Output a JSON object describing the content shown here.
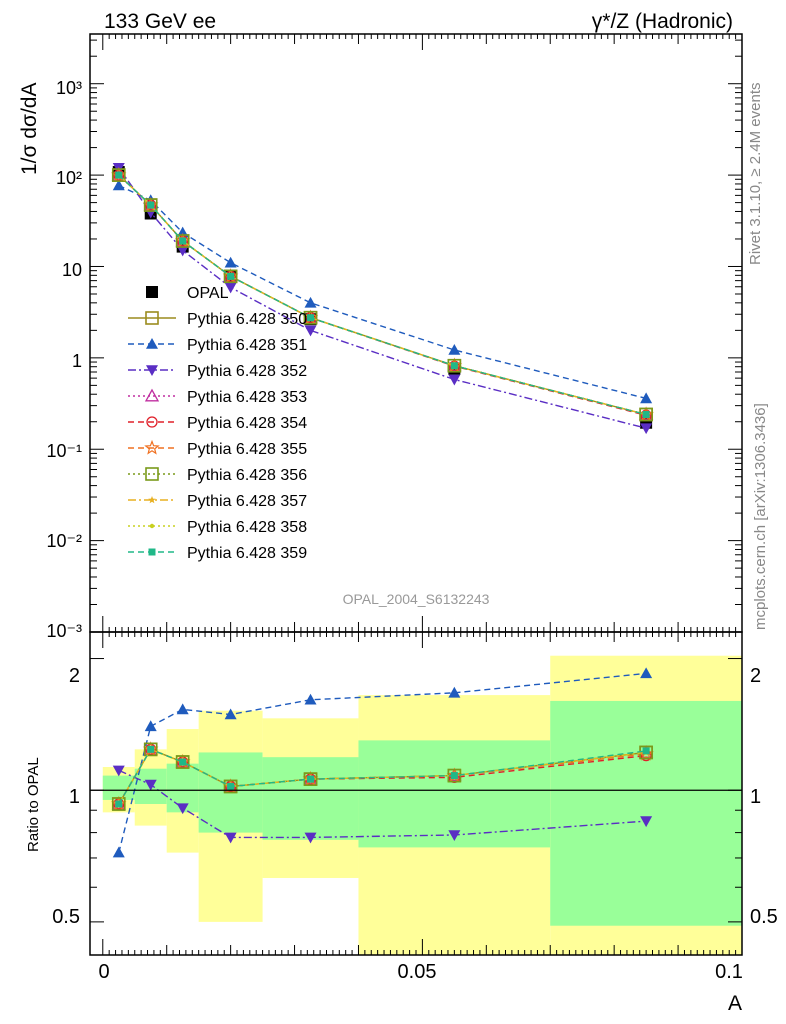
{
  "header": {
    "left": "133 GeV ee",
    "right": "γ*/Z (Hadronic)"
  },
  "side_labels": {
    "rivet": "Rivet 3.1.10, ≥ 2.4M events",
    "mcplots": "mcplots.cern.ch [arXiv:1306.3436]"
  },
  "watermark": "OPAL_2004_S6132243",
  "axes": {
    "main_ylabel": "1/σ dσ/dA",
    "ratio_ylabel": "Ratio to OPAL",
    "xlabel": "A",
    "x_ticks": [
      "0",
      "0.05",
      "0.1"
    ],
    "main_y_ticks": [
      "10⁻³",
      "10⁻²",
      "10⁻¹",
      "1",
      "10",
      "10²",
      "10³"
    ],
    "ratio_y_ticks": [
      "0.5",
      "1",
      "2"
    ]
  },
  "chart_data": [
    {
      "type": "line",
      "panel": "main",
      "xlim": [
        -0.002,
        0.1
      ],
      "ylim": [
        0.001,
        3500
      ],
      "y_scale": "log",
      "x": [
        0.0025,
        0.0075,
        0.0125,
        0.02,
        0.0325,
        0.055,
        0.085
      ],
      "legend_position": "center-left",
      "series": [
        {
          "name": "OPAL",
          "color": "#000000",
          "marker": "square-filled",
          "line": "none",
          "values": [
            108,
            38,
            16.5,
            7.7,
            2.65,
            0.76,
            0.195
          ]
        },
        {
          "name": "Pythia 6.428 350",
          "color": "#9b8c1e",
          "marker": "square-open",
          "line": "solid",
          "values": [
            100,
            47,
            19,
            7.8,
            2.75,
            0.82,
            0.24
          ]
        },
        {
          "name": "Pythia 6.428 351",
          "color": "#1f5bbd",
          "marker": "triangle-up",
          "line": "dashed",
          "values": [
            77,
            53,
            23.5,
            11,
            4.0,
            1.22,
            0.36
          ]
        },
        {
          "name": "Pythia 6.428 352",
          "color": "#5a2ec4",
          "marker": "triangle-down",
          "line": "dashdot",
          "values": [
            120,
            39,
            15,
            5.9,
            2.0,
            0.58,
            0.17
          ]
        },
        {
          "name": "Pythia 6.428 353",
          "color": "#c02fa0",
          "marker": "triangle-open",
          "line": "dotted",
          "values": [
            100,
            47,
            19,
            7.8,
            2.75,
            0.82,
            0.24
          ]
        },
        {
          "name": "Pythia 6.428 354",
          "color": "#e0202a",
          "marker": "circle-open",
          "line": "dashed",
          "values": [
            100,
            47,
            19,
            7.8,
            2.75,
            0.81,
            0.235
          ]
        },
        {
          "name": "Pythia 6.428 355",
          "color": "#f07020",
          "marker": "star-open",
          "line": "dashed",
          "values": [
            100,
            47,
            19,
            7.8,
            2.75,
            0.82,
            0.24
          ]
        },
        {
          "name": "Pythia 6.428 356",
          "color": "#7a9a1a",
          "marker": "square-open",
          "line": "dotted",
          "values": [
            100,
            47,
            19,
            7.8,
            2.75,
            0.82,
            0.24
          ]
        },
        {
          "name": "Pythia 6.428 357",
          "color": "#e8b020",
          "marker": "star-small",
          "line": "dashdot",
          "values": [
            100,
            47,
            19,
            7.8,
            2.75,
            0.82,
            0.24
          ]
        },
        {
          "name": "Pythia 6.428 358",
          "color": "#c8d020",
          "marker": "dot",
          "line": "dotted",
          "values": [
            100,
            47,
            19,
            7.8,
            2.75,
            0.82,
            0.24
          ]
        },
        {
          "name": "Pythia 6.428 359",
          "color": "#20b888",
          "marker": "square-filled-small",
          "line": "dashed",
          "values": [
            100,
            47,
            19,
            7.8,
            2.75,
            0.82,
            0.24
          ]
        }
      ]
    },
    {
      "type": "line",
      "panel": "ratio",
      "xlim": [
        -0.002,
        0.1
      ],
      "ylim": [
        0.42,
        2.3
      ],
      "y_scale": "log",
      "x": [
        0.0025,
        0.0075,
        0.0125,
        0.02,
        0.0325,
        0.055,
        0.085
      ],
      "reference_line": 1,
      "bands": {
        "edges": [
          0,
          0.005,
          0.01,
          0.015,
          0.025,
          0.04,
          0.07,
          0.1
        ],
        "inner": [
          [
            0.95,
            1.08
          ],
          [
            0.93,
            1.12
          ],
          [
            0.89,
            1.15
          ],
          [
            0.8,
            1.22
          ],
          [
            0.77,
            1.19
          ],
          [
            0.74,
            1.3
          ],
          [
            0.49,
            1.6
          ]
        ],
        "outer": [
          [
            0.89,
            1.13
          ],
          [
            0.83,
            1.24
          ],
          [
            0.72,
            1.38
          ],
          [
            0.5,
            1.52
          ],
          [
            0.63,
            1.46
          ],
          [
            0.35,
            1.65
          ],
          [
            0.35,
            2.03
          ]
        ],
        "inner_color": "#99ff99",
        "outer_color": "#ffff99"
      },
      "series": [
        {
          "name": "Pythia 6.428 350",
          "color": "#9b8c1e",
          "marker": "square-open",
          "line": "solid",
          "values": [
            0.93,
            1.24,
            1.16,
            1.02,
            1.06,
            1.08,
            1.22
          ]
        },
        {
          "name": "Pythia 6.428 351",
          "color": "#1f5bbd",
          "marker": "triangle-up",
          "line": "dashed",
          "values": [
            0.72,
            1.4,
            1.53,
            1.49,
            1.61,
            1.67,
            1.85
          ]
        },
        {
          "name": "Pythia 6.428 352",
          "color": "#5a2ec4",
          "marker": "triangle-down",
          "line": "dashdot",
          "values": [
            1.11,
            1.03,
            0.91,
            0.78,
            0.78,
            0.79,
            0.85
          ]
        },
        {
          "name": "Pythia 6.428 353",
          "color": "#c02fa0",
          "marker": "triangle-open",
          "line": "dotted",
          "values": [
            0.93,
            1.24,
            1.16,
            1.02,
            1.06,
            1.08,
            1.22
          ]
        },
        {
          "name": "Pythia 6.428 354",
          "color": "#e0202a",
          "marker": "circle-open",
          "line": "dashed",
          "values": [
            0.93,
            1.24,
            1.16,
            1.02,
            1.06,
            1.07,
            1.2
          ]
        },
        {
          "name": "Pythia 6.428 355",
          "color": "#f07020",
          "marker": "star-open",
          "line": "dashed",
          "values": [
            0.93,
            1.24,
            1.16,
            1.02,
            1.06,
            1.08,
            1.21
          ]
        },
        {
          "name": "Pythia 6.428 356",
          "color": "#7a9a1a",
          "marker": "square-open",
          "line": "dotted",
          "values": [
            0.93,
            1.24,
            1.16,
            1.02,
            1.06,
            1.08,
            1.22
          ]
        },
        {
          "name": "Pythia 6.428 357",
          "color": "#e8b020",
          "marker": "star-small",
          "line": "dashdot",
          "values": [
            0.93,
            1.24,
            1.16,
            1.02,
            1.06,
            1.08,
            1.22
          ]
        },
        {
          "name": "Pythia 6.428 358",
          "color": "#c8d020",
          "marker": "dot",
          "line": "dotted",
          "values": [
            0.93,
            1.24,
            1.16,
            1.02,
            1.06,
            1.08,
            1.22
          ]
        },
        {
          "name": "Pythia 6.428 359",
          "color": "#20b888",
          "marker": "square-filled-small",
          "line": "dashed",
          "values": [
            0.93,
            1.24,
            1.16,
            1.02,
            1.06,
            1.08,
            1.23
          ]
        }
      ]
    }
  ]
}
